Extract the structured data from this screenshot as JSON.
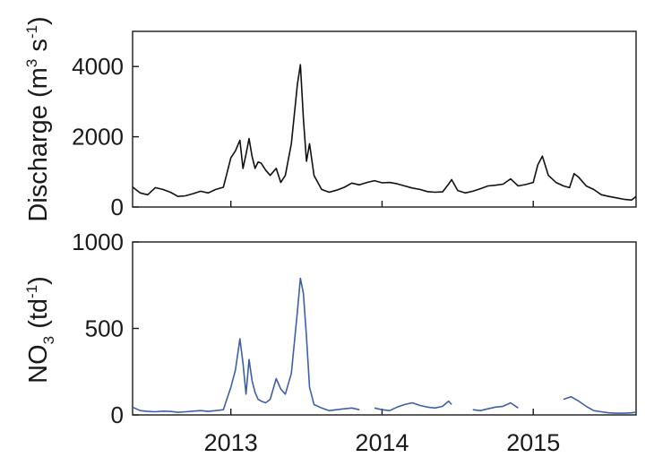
{
  "chart_data": [
    {
      "type": "line",
      "panel": "top",
      "xlabel": "",
      "ylabel_main": "Discharge (m",
      "ylabel_sup1": "3",
      "ylabel_mid": " s",
      "ylabel_sup2": "-1",
      "ylabel_end": ")",
      "ylim": [
        0,
        5000
      ],
      "yticks": [
        {
          "value": 0,
          "label": "0"
        },
        {
          "value": 2000,
          "label": "2000"
        },
        {
          "value": 4000,
          "label": "4000"
        }
      ],
      "grid": false,
      "line_color": "#111111",
      "series": [
        {
          "x": [
            2012.35,
            2012.4,
            2012.45,
            2012.5,
            2012.55,
            2012.6,
            2012.65,
            2012.7,
            2012.75,
            2012.8,
            2012.85,
            2012.9,
            2012.95,
            2013.0,
            2013.03,
            2013.06,
            2013.08,
            2013.1,
            2013.12,
            2013.14,
            2013.16,
            2013.18,
            2013.2,
            2013.23,
            2013.26,
            2013.3,
            2013.33,
            2013.36,
            2013.4,
            2013.44,
            2013.46,
            2013.48,
            2013.5,
            2013.52,
            2013.55,
            2013.6,
            2013.65,
            2013.7,
            2013.75,
            2013.8,
            2013.85,
            2013.9,
            2013.95,
            2014.0,
            2014.05,
            2014.1,
            2014.15,
            2014.2,
            2014.25,
            2014.3,
            2014.35,
            2014.4,
            2014.44,
            2014.46,
            2014.5,
            2014.55,
            2014.6,
            2014.65,
            2014.7,
            2014.75,
            2014.8,
            2014.85,
            2014.9,
            2014.95,
            2015.0,
            2015.03,
            2015.06,
            2015.1,
            2015.15,
            2015.2,
            2015.24,
            2015.27,
            2015.3,
            2015.35,
            2015.4,
            2015.45,
            2015.5,
            2015.55,
            2015.6,
            2015.65,
            2015.68
          ],
          "y": [
            570,
            400,
            350,
            550,
            500,
            420,
            300,
            320,
            380,
            450,
            400,
            500,
            560,
            1400,
            1600,
            1900,
            1100,
            1500,
            1950,
            1450,
            1100,
            1280,
            1250,
            1050,
            900,
            1100,
            700,
            900,
            1800,
            3500,
            4050,
            2500,
            1300,
            1800,
            900,
            500,
            420,
            480,
            560,
            680,
            630,
            700,
            750,
            690,
            700,
            660,
            600,
            540,
            500,
            440,
            420,
            430,
            650,
            780,
            470,
            400,
            450,
            520,
            600,
            620,
            650,
            800,
            600,
            640,
            700,
            1200,
            1450,
            900,
            700,
            600,
            550,
            950,
            850,
            600,
            500,
            350,
            300,
            260,
            220,
            200,
            300
          ]
        }
      ]
    },
    {
      "type": "line",
      "panel": "bottom",
      "xlabel": "",
      "ylabel_main": "NO",
      "ylabel_sub": "3",
      "ylabel_mid": " (td",
      "ylabel_sup": "-1",
      "ylabel_end": ")",
      "ylim": [
        0,
        1000
      ],
      "yticks": [
        {
          "value": 0,
          "label": "0"
        },
        {
          "value": 500,
          "label": "500"
        },
        {
          "value": 1000,
          "label": "1000"
        }
      ],
      "xticks": [
        {
          "value": 2013,
          "label": "2013"
        },
        {
          "value": 2014,
          "label": "2014"
        },
        {
          "value": 2015,
          "label": "2015"
        }
      ],
      "xlim": [
        2012.35,
        2015.68
      ],
      "grid": false,
      "line_color": "#3e5fa8",
      "segments": [
        {
          "x": [
            2012.35,
            2012.4,
            2012.45,
            2012.5,
            2012.55,
            2012.6,
            2012.65,
            2012.7,
            2012.75,
            2012.8,
            2012.85,
            2012.9,
            2012.95,
            2013.0,
            2013.03,
            2013.06,
            2013.08,
            2013.1,
            2013.12,
            2013.14,
            2013.16,
            2013.18,
            2013.2,
            2013.23,
            2013.26,
            2013.3,
            2013.33,
            2013.36,
            2013.4,
            2013.44,
            2013.46,
            2013.48,
            2013.5,
            2013.52,
            2013.55,
            2013.6,
            2013.65,
            2013.7,
            2013.75,
            2013.8,
            2013.85
          ],
          "y": [
            45,
            25,
            20,
            18,
            22,
            20,
            15,
            18,
            22,
            25,
            20,
            25,
            30,
            160,
            260,
            440,
            300,
            120,
            320,
            200,
            130,
            90,
            80,
            70,
            90,
            210,
            150,
            120,
            240,
            600,
            790,
            700,
            450,
            160,
            60,
            40,
            25,
            30,
            35,
            40,
            30
          ]
        },
        {
          "x": [
            2013.95,
            2014.0,
            2014.05,
            2014.1,
            2014.15,
            2014.2,
            2014.25,
            2014.3,
            2014.35,
            2014.4,
            2014.44,
            2014.46
          ],
          "y": [
            40,
            30,
            25,
            45,
            60,
            70,
            55,
            45,
            40,
            50,
            80,
            60
          ]
        },
        {
          "x": [
            2014.6,
            2014.65,
            2014.7,
            2014.75,
            2014.8,
            2014.85,
            2014.9
          ],
          "y": [
            30,
            25,
            35,
            45,
            50,
            70,
            40
          ]
        },
        {
          "x": [
            2015.2,
            2015.25,
            2015.3,
            2015.35,
            2015.4,
            2015.45,
            2015.5,
            2015.55,
            2015.6,
            2015.65,
            2015.68
          ],
          "y": [
            90,
            105,
            80,
            50,
            25,
            18,
            12,
            10,
            10,
            12,
            15
          ]
        }
      ]
    }
  ],
  "colors": {
    "axis": "#1a1a1a",
    "discharge_line": "#111111",
    "no3_line": "#3e5fa8",
    "background": "#ffffff"
  }
}
